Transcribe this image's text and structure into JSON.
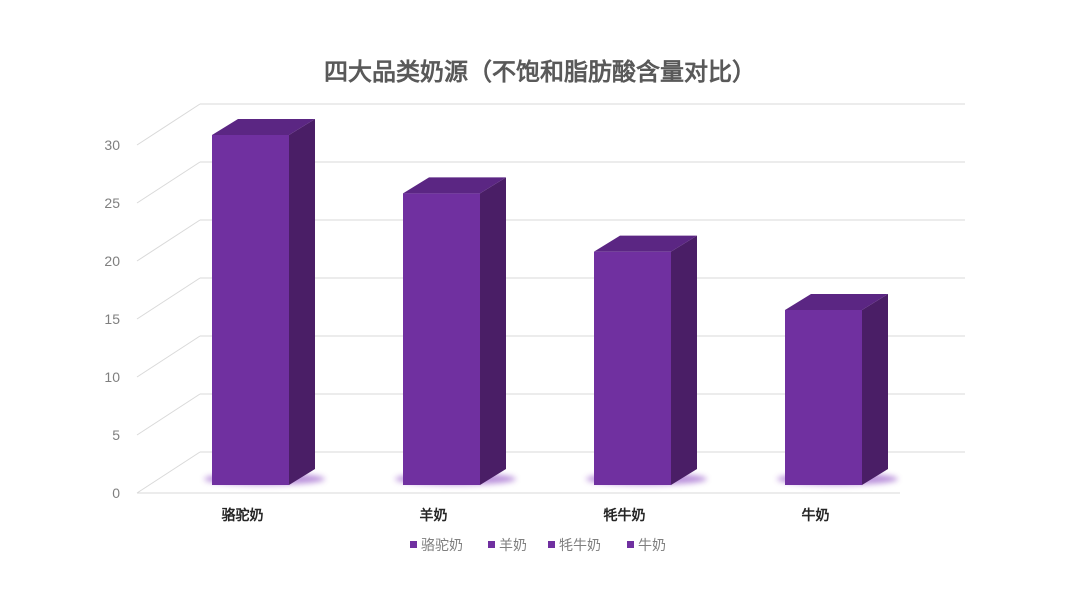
{
  "chart_data": {
    "type": "bar",
    "style": "3d-column",
    "title": "四大品类奶源（不饱和脂肪酸含量对比）",
    "categories": [
      "骆驼奶",
      "羊奶",
      "牦牛奶",
      "牛奶"
    ],
    "values": [
      30,
      25,
      20,
      15
    ],
    "ylim": [
      0,
      30
    ],
    "yticks": [
      0,
      5,
      10,
      15,
      20,
      25,
      30
    ],
    "grid": true,
    "legend": {
      "placement": "bottom",
      "entries": [
        "骆驼奶",
        "羊奶",
        "牦牛奶",
        "牛奶"
      ]
    },
    "colors": {
      "front": "#7030a0",
      "side": "#4a1e66",
      "top": "#5b2683",
      "grid": "#d9d9d9",
      "legend_marker": "#7030a0"
    }
  }
}
